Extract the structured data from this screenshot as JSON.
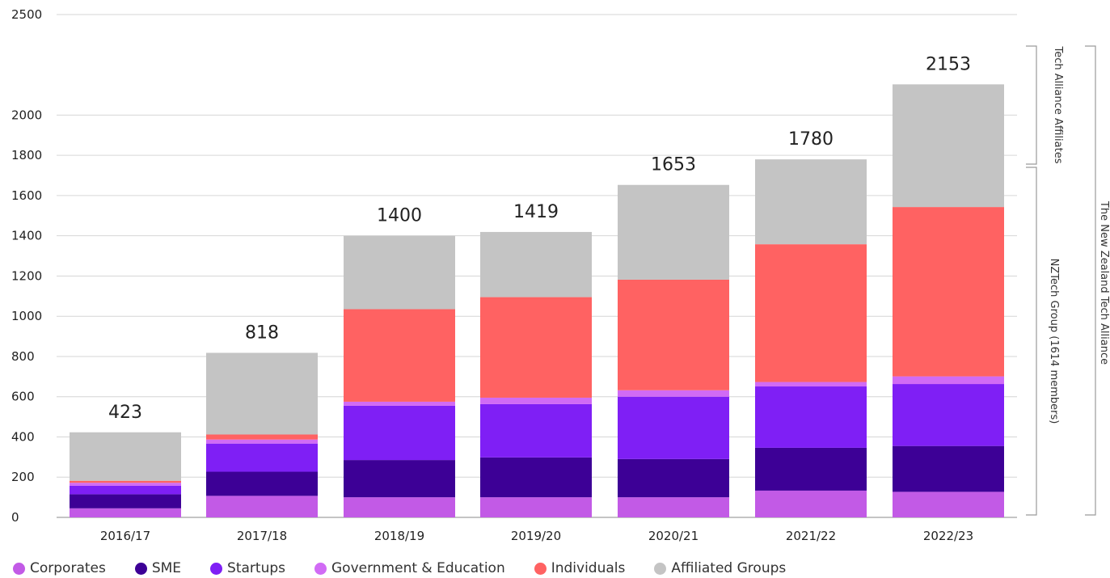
{
  "chart_data": {
    "type": "bar",
    "stacked": true,
    "categories": [
      "2016/17",
      "2017/18",
      "2018/19",
      "2019/20",
      "2020/21",
      "2021/22",
      "2022/23"
    ],
    "ylim": [
      0,
      2500
    ],
    "yticks": [
      0,
      200,
      400,
      600,
      800,
      1000,
      1200,
      1400,
      1600,
      1800,
      2000,
      2500
    ],
    "grid": true,
    "legend_position": "bottom-left",
    "series": [
      {
        "name": "Corporates",
        "color": "#c25ae6",
        "values": [
          45,
          107,
          100,
          100,
          100,
          133,
          127
        ]
      },
      {
        "name": "SME",
        "color": "#3d0096",
        "values": [
          70,
          120,
          185,
          198,
          190,
          213,
          228
        ]
      },
      {
        "name": "Startups",
        "color": "#7f1ff5",
        "values": [
          42,
          140,
          270,
          265,
          310,
          305,
          308
        ]
      },
      {
        "name": "Government & Education",
        "color": "#d16bf5",
        "values": [
          15,
          20,
          20,
          32,
          32,
          22,
          38
        ]
      },
      {
        "name": "Individuals",
        "color": "#ff6262",
        "values": [
          10,
          25,
          460,
          500,
          550,
          685,
          842
        ]
      },
      {
        "name": "Affiliated Groups",
        "color": "#c4c4c4",
        "values": [
          241,
          406,
          365,
          324,
          471,
          422,
          610
        ]
      }
    ],
    "totals": [
      "423",
      "818",
      "1400",
      "1419",
      "1653",
      "1780",
      "2153"
    ],
    "annotations": {
      "affiliates": "Tech Alliance Affiliates",
      "group": "NZTech Group (1614 members)",
      "alliance": "The New Zealand Tech Alliance"
    }
  }
}
